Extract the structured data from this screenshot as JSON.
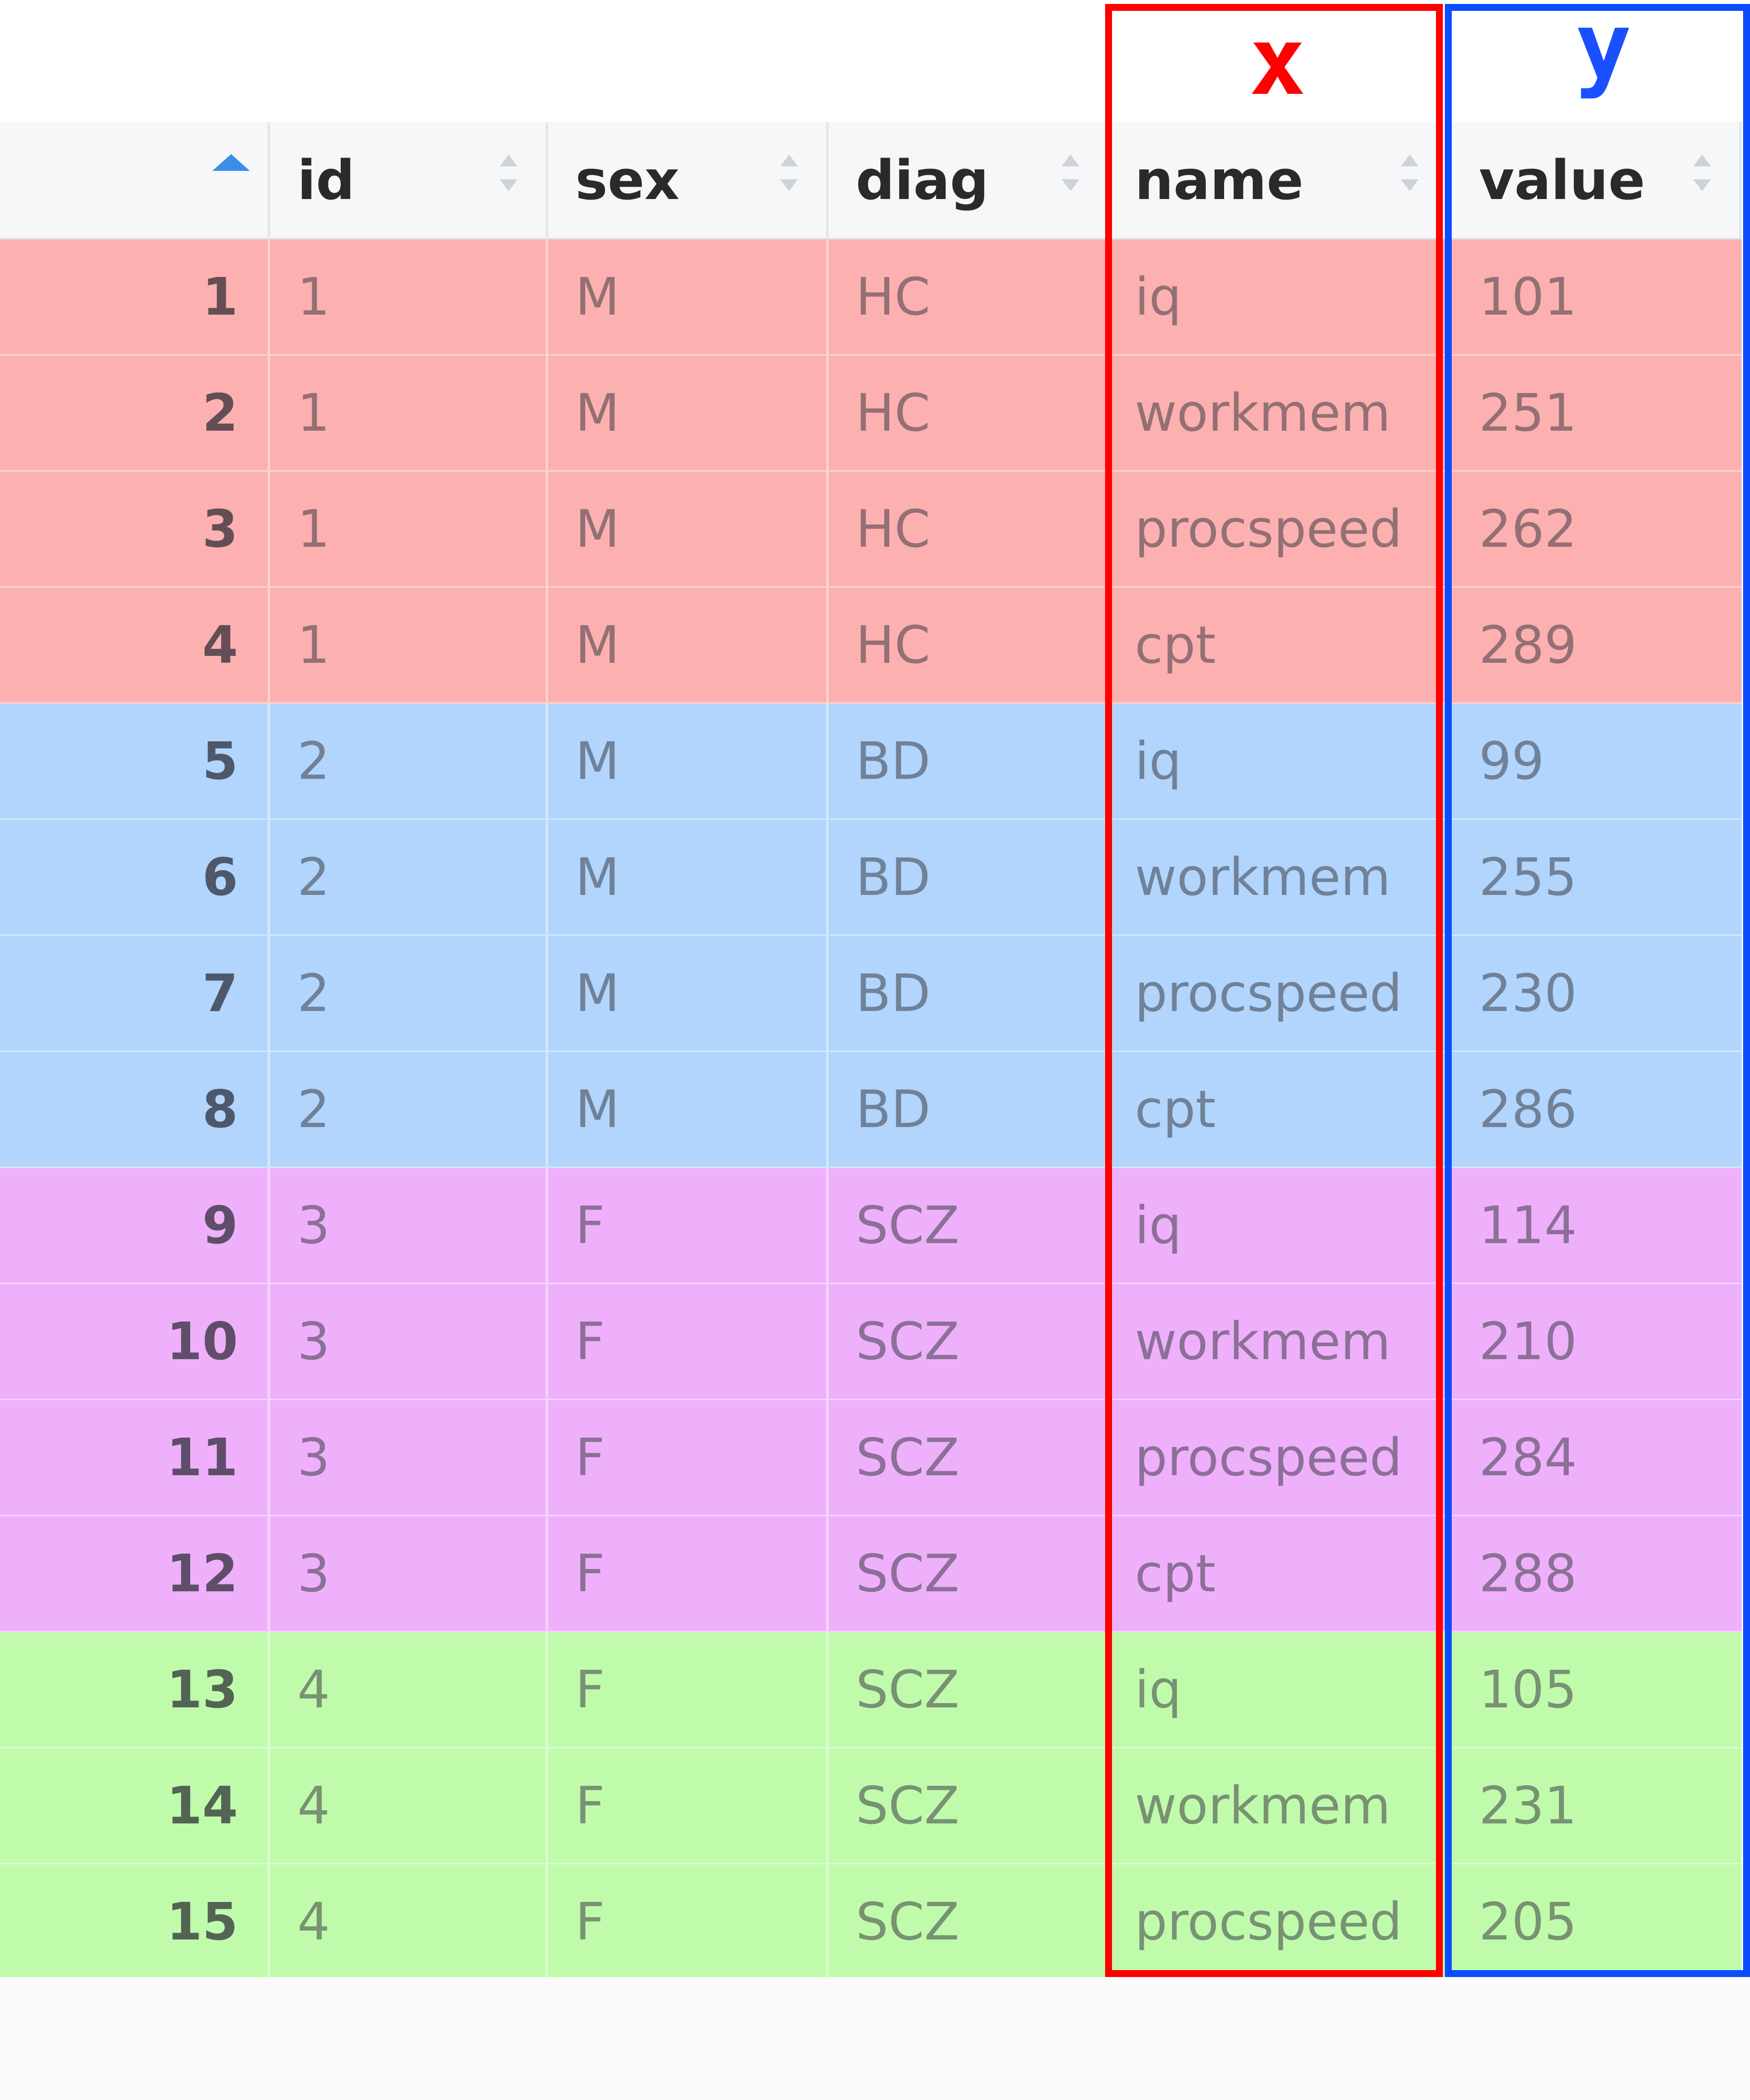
{
  "annotations": {
    "x_label": "x",
    "y_label": "y",
    "x_color": "#ff0000",
    "y_color": "#0a4dff"
  },
  "table": {
    "columns": [
      "",
      "id",
      "sex",
      "diag",
      "name",
      "value"
    ],
    "group_colors": {
      "HC": "#fcb0b0",
      "BD": "#b1d5fc",
      "SCZ_3": "#eeb0fb",
      "SCZ_4": "#c0fbac"
    },
    "rows": [
      {
        "n": "1",
        "id": "1",
        "sex": "M",
        "diag": "HC",
        "name": "iq",
        "value": "101",
        "group": "red"
      },
      {
        "n": "2",
        "id": "1",
        "sex": "M",
        "diag": "HC",
        "name": "workmem",
        "value": "251",
        "group": "red"
      },
      {
        "n": "3",
        "id": "1",
        "sex": "M",
        "diag": "HC",
        "name": "procspeed",
        "value": "262",
        "group": "red"
      },
      {
        "n": "4",
        "id": "1",
        "sex": "M",
        "diag": "HC",
        "name": "cpt",
        "value": "289",
        "group": "red"
      },
      {
        "n": "5",
        "id": "2",
        "sex": "M",
        "diag": "BD",
        "name": "iq",
        "value": "99",
        "group": "blue"
      },
      {
        "n": "6",
        "id": "2",
        "sex": "M",
        "diag": "BD",
        "name": "workmem",
        "value": "255",
        "group": "blue"
      },
      {
        "n": "7",
        "id": "2",
        "sex": "M",
        "diag": "BD",
        "name": "procspeed",
        "value": "230",
        "group": "blue"
      },
      {
        "n": "8",
        "id": "2",
        "sex": "M",
        "diag": "BD",
        "name": "cpt",
        "value": "286",
        "group": "blue"
      },
      {
        "n": "9",
        "id": "3",
        "sex": "F",
        "diag": "SCZ",
        "name": "iq",
        "value": "114",
        "group": "pink"
      },
      {
        "n": "10",
        "id": "3",
        "sex": "F",
        "diag": "SCZ",
        "name": "workmem",
        "value": "210",
        "group": "pink"
      },
      {
        "n": "11",
        "id": "3",
        "sex": "F",
        "diag": "SCZ",
        "name": "procspeed",
        "value": "284",
        "group": "pink"
      },
      {
        "n": "12",
        "id": "3",
        "sex": "F",
        "diag": "SCZ",
        "name": "cpt",
        "value": "288",
        "group": "pink"
      },
      {
        "n": "13",
        "id": "4",
        "sex": "F",
        "diag": "SCZ",
        "name": "iq",
        "value": "105",
        "group": "green"
      },
      {
        "n": "14",
        "id": "4",
        "sex": "F",
        "diag": "SCZ",
        "name": "workmem",
        "value": "231",
        "group": "green"
      },
      {
        "n": "15",
        "id": "4",
        "sex": "F",
        "diag": "SCZ",
        "name": "procspeed",
        "value": "205",
        "group": "green"
      }
    ]
  }
}
